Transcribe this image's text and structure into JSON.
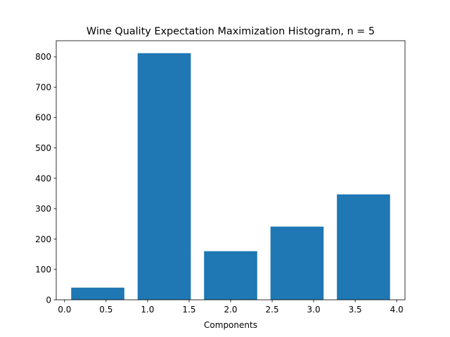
{
  "chart_data": {
    "type": "bar",
    "title": "Wine Quality Expectation Maximization Histogram, n = 5",
    "xlabel": "Components",
    "ylabel": "",
    "xlim": [
      -0.1,
      4.1
    ],
    "ylim": [
      0,
      853
    ],
    "x_ticks": [
      0.0,
      0.5,
      1.0,
      1.5,
      2.0,
      2.5,
      3.0,
      3.5,
      4.0
    ],
    "x_tick_labels": [
      "0.0",
      "0.5",
      "1.0",
      "1.5",
      "2.0",
      "2.5",
      "3.0",
      "3.5",
      "4.0"
    ],
    "y_ticks": [
      0,
      100,
      200,
      300,
      400,
      500,
      600,
      700,
      800
    ],
    "y_tick_labels": [
      "0",
      "100",
      "200",
      "300",
      "400",
      "500",
      "600",
      "700",
      "800"
    ],
    "bar_color": "#1f77b4",
    "bars": [
      {
        "x0": 0.08,
        "x1": 0.72,
        "value": 40
      },
      {
        "x0": 0.88,
        "x1": 1.52,
        "value": 812
      },
      {
        "x0": 1.68,
        "x1": 2.32,
        "value": 160
      },
      {
        "x0": 2.48,
        "x1": 3.12,
        "value": 241
      },
      {
        "x0": 3.28,
        "x1": 3.92,
        "value": 347
      }
    ]
  }
}
